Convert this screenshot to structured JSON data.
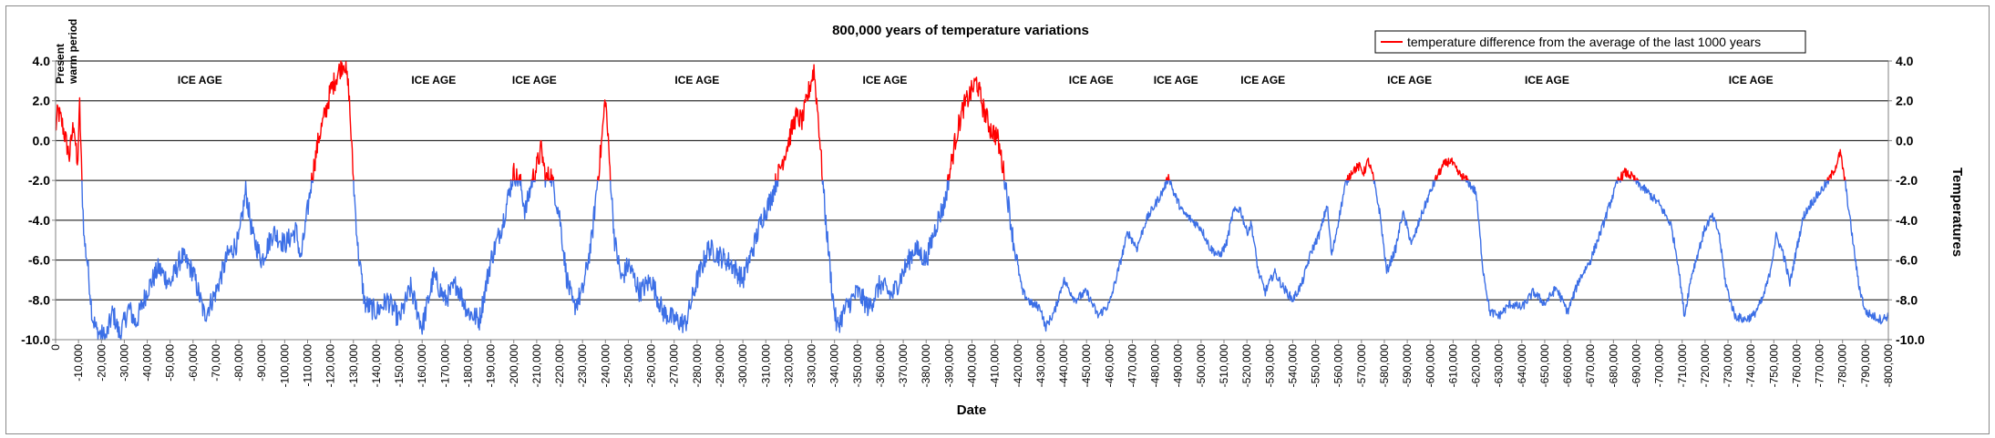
{
  "chart_data": {
    "type": "line",
    "title": "800,000 years of temperature variations",
    "xlabel": "Date",
    "ylabel_right": "Temperatures",
    "xlim": [
      0,
      -800000
    ],
    "ylim": [
      -10.0,
      4.0
    ],
    "ytick_labels": [
      "4.0",
      "2.0",
      "0.0",
      "-2.0",
      "-4.0",
      "-6.0",
      "-8.0",
      "-10.0"
    ],
    "yticks": [
      4,
      2,
      0,
      -2,
      -4,
      -6,
      -8,
      -10
    ],
    "xtick_step": 10000,
    "grid": true,
    "legend_position": "top-right",
    "threshold": -2.0,
    "colors": {
      "above": "#ff0000",
      "below": "#3c6fe6",
      "grid": "#000000",
      "axis": "#808080"
    },
    "series": [
      {
        "name": "temperature difference from the average of the last 1000 years",
        "key_points": [
          [
            0,
            0.5
          ],
          [
            -1000,
            1.5
          ],
          [
            -3000,
            0.8
          ],
          [
            -6000,
            -0.8
          ],
          [
            -8000,
            1.0
          ],
          [
            -9500,
            -1.5
          ],
          [
            -10500,
            1.8
          ],
          [
            -11500,
            -2.2
          ],
          [
            -12500,
            -5.0
          ],
          [
            -14000,
            -6.2
          ],
          [
            -16000,
            -8.8
          ],
          [
            -18000,
            -9.6
          ],
          [
            -22000,
            -9.9
          ],
          [
            -25000,
            -8.6
          ],
          [
            -28000,
            -9.8
          ],
          [
            -32000,
            -8.4
          ],
          [
            -35000,
            -9.2
          ],
          [
            -40000,
            -7.5
          ],
          [
            -45000,
            -6.4
          ],
          [
            -50000,
            -7.2
          ],
          [
            -55000,
            -5.8
          ],
          [
            -60000,
            -6.6
          ],
          [
            -65000,
            -8.8
          ],
          [
            -70000,
            -7.6
          ],
          [
            -75000,
            -5.8
          ],
          [
            -80000,
            -5.0
          ],
          [
            -83000,
            -2.5
          ],
          [
            -86000,
            -4.8
          ],
          [
            -90000,
            -6.0
          ],
          [
            -95000,
            -4.6
          ],
          [
            -100000,
            -5.2
          ],
          [
            -105000,
            -4.5
          ],
          [
            -107000,
            -6.0
          ],
          [
            -110000,
            -3.5
          ],
          [
            -112000,
            -1.8
          ],
          [
            -115000,
            0.2
          ],
          [
            -118000,
            1.5
          ],
          [
            -120000,
            2.5
          ],
          [
            -124000,
            3.6
          ],
          [
            -126000,
            4.0
          ],
          [
            -128000,
            2.5
          ],
          [
            -130000,
            -2.0
          ],
          [
            -132000,
            -5.5
          ],
          [
            -135000,
            -8.2
          ],
          [
            -140000,
            -8.6
          ],
          [
            -145000,
            -8.0
          ],
          [
            -150000,
            -9.0
          ],
          [
            -155000,
            -7.4
          ],
          [
            -160000,
            -9.4
          ],
          [
            -165000,
            -6.8
          ],
          [
            -170000,
            -8.0
          ],
          [
            -175000,
            -7.2
          ],
          [
            -180000,
            -8.6
          ],
          [
            -185000,
            -9.0
          ],
          [
            -190000,
            -6.0
          ],
          [
            -195000,
            -4.2
          ],
          [
            -198000,
            -2.6
          ],
          [
            -200000,
            -1.6
          ],
          [
            -203000,
            -2.2
          ],
          [
            -205000,
            -3.6
          ],
          [
            -208000,
            -2.0
          ],
          [
            -210000,
            -1.3
          ],
          [
            -212000,
            -0.4
          ],
          [
            -214000,
            -2.0
          ],
          [
            -216000,
            -1.6
          ],
          [
            -220000,
            -3.8
          ],
          [
            -223000,
            -6.8
          ],
          [
            -226000,
            -8.4
          ],
          [
            -230000,
            -7.6
          ],
          [
            -234000,
            -5.0
          ],
          [
            -236000,
            -2.6
          ],
          [
            -238000,
            -0.5
          ],
          [
            -240000,
            2.2
          ],
          [
            -242000,
            -1.5
          ],
          [
            -244000,
            -5.0
          ],
          [
            -247000,
            -7.0
          ],
          [
            -250000,
            -6.2
          ],
          [
            -255000,
            -7.6
          ],
          [
            -260000,
            -7.0
          ],
          [
            -265000,
            -8.6
          ],
          [
            -270000,
            -9.0
          ],
          [
            -275000,
            -9.2
          ],
          [
            -280000,
            -7.0
          ],
          [
            -285000,
            -5.4
          ],
          [
            -290000,
            -5.8
          ],
          [
            -295000,
            -6.2
          ],
          [
            -300000,
            -7.0
          ],
          [
            -305000,
            -5.2
          ],
          [
            -308000,
            -4.0
          ],
          [
            -312000,
            -3.0
          ],
          [
            -316000,
            -1.5
          ],
          [
            -320000,
            0.0
          ],
          [
            -323000,
            1.2
          ],
          [
            -326000,
            1.0
          ],
          [
            -329000,
            2.6
          ],
          [
            -331000,
            3.6
          ],
          [
            -333000,
            1.0
          ],
          [
            -336000,
            -3.8
          ],
          [
            -339000,
            -7.6
          ],
          [
            -341000,
            -9.4
          ],
          [
            -345000,
            -8.4
          ],
          [
            -350000,
            -7.6
          ],
          [
            -355000,
            -8.4
          ],
          [
            -360000,
            -7.2
          ],
          [
            -365000,
            -7.8
          ],
          [
            -370000,
            -6.6
          ],
          [
            -375000,
            -5.4
          ],
          [
            -380000,
            -6.0
          ],
          [
            -385000,
            -4.0
          ],
          [
            -388000,
            -3.2
          ],
          [
            -390000,
            -1.8
          ],
          [
            -393000,
            0.2
          ],
          [
            -396000,
            1.6
          ],
          [
            -399000,
            2.3
          ],
          [
            -402000,
            3.0
          ],
          [
            -405000,
            1.6
          ],
          [
            -408000,
            0.6
          ],
          [
            -411000,
            0.2
          ],
          [
            -413000,
            -1.0
          ],
          [
            -415000,
            -2.4
          ],
          [
            -418000,
            -5.0
          ],
          [
            -422000,
            -7.6
          ],
          [
            -426000,
            -8.2
          ],
          [
            -430000,
            -8.4
          ],
          [
            -432000,
            -9.4
          ],
          [
            -436000,
            -8.6
          ],
          [
            -440000,
            -7.0
          ],
          [
            -445000,
            -8.0
          ],
          [
            -450000,
            -7.6
          ],
          [
            -455000,
            -8.8
          ],
          [
            -460000,
            -8.2
          ],
          [
            -465000,
            -6.0
          ],
          [
            -468000,
            -4.6
          ],
          [
            -472000,
            -5.4
          ],
          [
            -476000,
            -4.0
          ],
          [
            -480000,
            -3.2
          ],
          [
            -483000,
            -2.6
          ],
          [
            -486000,
            -1.8
          ],
          [
            -488000,
            -2.6
          ],
          [
            -492000,
            -3.6
          ],
          [
            -496000,
            -4.0
          ],
          [
            -500000,
            -4.4
          ],
          [
            -504000,
            -5.4
          ],
          [
            -508000,
            -5.8
          ],
          [
            -511000,
            -5.2
          ],
          [
            -514000,
            -3.6
          ],
          [
            -517000,
            -3.4
          ],
          [
            -520000,
            -4.6
          ],
          [
            -522000,
            -4.2
          ],
          [
            -525000,
            -6.6
          ],
          [
            -528000,
            -7.6
          ],
          [
            -532000,
            -6.6
          ],
          [
            -536000,
            -7.4
          ],
          [
            -540000,
            -8.0
          ],
          [
            -544000,
            -7.2
          ],
          [
            -548000,
            -5.6
          ],
          [
            -552000,
            -4.6
          ],
          [
            -555000,
            -3.2
          ],
          [
            -557000,
            -5.8
          ],
          [
            -560000,
            -4.0
          ],
          [
            -563000,
            -2.2
          ],
          [
            -566000,
            -1.5
          ],
          [
            -569000,
            -1.3
          ],
          [
            -571000,
            -1.6
          ],
          [
            -573000,
            -1.0
          ],
          [
            -575000,
            -1.8
          ],
          [
            -578000,
            -3.6
          ],
          [
            -581000,
            -6.6
          ],
          [
            -585000,
            -5.4
          ],
          [
            -588000,
            -3.6
          ],
          [
            -592000,
            -5.2
          ],
          [
            -596000,
            -3.8
          ],
          [
            -600000,
            -2.6
          ],
          [
            -603000,
            -1.8
          ],
          [
            -606000,
            -1.2
          ],
          [
            -609000,
            -1.0
          ],
          [
            -612000,
            -1.6
          ],
          [
            -616000,
            -2.0
          ],
          [
            -620000,
            -2.6
          ],
          [
            -623000,
            -6.4
          ],
          [
            -626000,
            -8.6
          ],
          [
            -630000,
            -8.8
          ],
          [
            -635000,
            -8.2
          ],
          [
            -640000,
            -8.4
          ],
          [
            -645000,
            -7.6
          ],
          [
            -650000,
            -8.2
          ],
          [
            -655000,
            -7.4
          ],
          [
            -660000,
            -8.6
          ],
          [
            -665000,
            -7.0
          ],
          [
            -670000,
            -6.0
          ],
          [
            -675000,
            -4.4
          ],
          [
            -679000,
            -3.0
          ],
          [
            -682000,
            -2.0
          ],
          [
            -685000,
            -1.6
          ],
          [
            -688000,
            -1.8
          ],
          [
            -691000,
            -2.2
          ],
          [
            -695000,
            -2.6
          ],
          [
            -700000,
            -3.2
          ],
          [
            -705000,
            -4.2
          ],
          [
            -708000,
            -6.0
          ],
          [
            -711000,
            -8.8
          ],
          [
            -714000,
            -6.8
          ],
          [
            -717000,
            -5.6
          ],
          [
            -720000,
            -4.4
          ],
          [
            -723000,
            -3.8
          ],
          [
            -726000,
            -4.6
          ],
          [
            -729000,
            -7.2
          ],
          [
            -733000,
            -8.8
          ],
          [
            -737000,
            -9.0
          ],
          [
            -741000,
            -8.8
          ],
          [
            -745000,
            -8.0
          ],
          [
            -748000,
            -6.8
          ],
          [
            -751000,
            -4.8
          ],
          [
            -754000,
            -5.6
          ],
          [
            -757000,
            -7.2
          ],
          [
            -760000,
            -5.4
          ],
          [
            -763000,
            -3.8
          ],
          [
            -766000,
            -3.2
          ],
          [
            -770000,
            -2.6
          ],
          [
            -774000,
            -2.0
          ],
          [
            -777000,
            -1.3
          ],
          [
            -779000,
            -0.6
          ],
          [
            -781000,
            -2.0
          ],
          [
            -784000,
            -4.6
          ],
          [
            -787000,
            -7.2
          ],
          [
            -790000,
            -8.6
          ],
          [
            -793000,
            -8.8
          ],
          [
            -797000,
            -9.0
          ],
          [
            -800000,
            -8.8
          ]
        ]
      }
    ],
    "annotations": [
      {
        "text": "Present warm period",
        "x": -1500
      },
      {
        "text": "ICE AGE",
        "x": -63000
      },
      {
        "text": "ICE AGE",
        "x": -165000
      },
      {
        "text": "ICE AGE",
        "x": -209000
      },
      {
        "text": "ICE AGE",
        "x": -280000
      },
      {
        "text": "ICE AGE",
        "x": -362000
      },
      {
        "text": "ICE AGE",
        "x": -452000
      },
      {
        "text": "ICE AGE",
        "x": -489000
      },
      {
        "text": "ICE AGE",
        "x": -527000
      },
      {
        "text": "ICE AGE",
        "x": -591000
      },
      {
        "text": "ICE AGE",
        "x": -651000
      },
      {
        "text": "ICE AGE",
        "x": -740000
      }
    ]
  }
}
